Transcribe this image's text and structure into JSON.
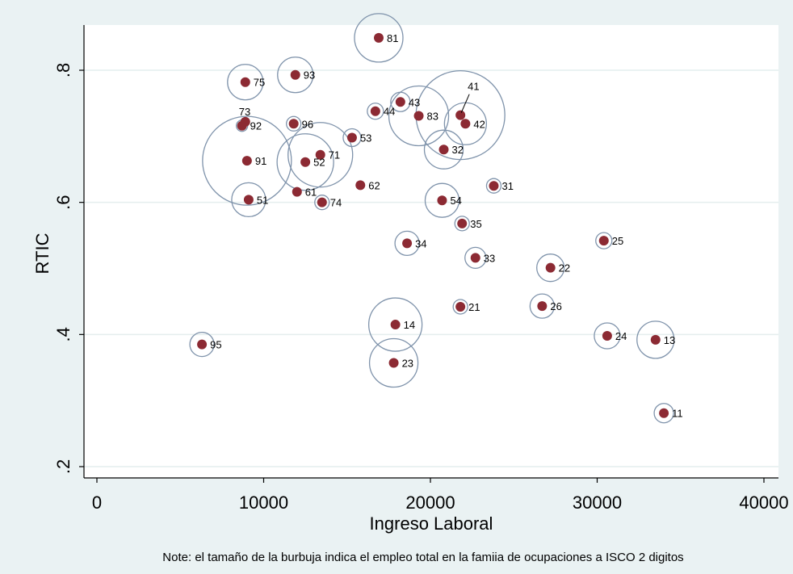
{
  "chart_data": {
    "type": "scatter",
    "title": "",
    "xlabel": "Ingreso Laboral",
    "ylabel": "RTIC",
    "xlim": [
      0,
      40000
    ],
    "ylim": [
      0.2,
      0.85
    ],
    "xticks": [
      "0",
      "10000",
      "20000",
      "30000",
      "40000"
    ],
    "yticks": [
      ".2",
      ".4",
      ".6",
      ".8"
    ],
    "grid": true,
    "note": "Note: el tamaño de la burbuja indica el empleo total en la famiia de ocupaciones a ISCO 2 digitos",
    "points": [
      {
        "label": "81",
        "x": 16900,
        "y": 0.849,
        "r": 30
      },
      {
        "label": "75",
        "x": 8900,
        "y": 0.782,
        "r": 22
      },
      {
        "label": "93",
        "x": 11900,
        "y": 0.793,
        "r": 22
      },
      {
        "label": "41",
        "x": 21800,
        "y": 0.732,
        "r": 55
      },
      {
        "label": "43",
        "x": 18200,
        "y": 0.752,
        "r": 12
      },
      {
        "label": "44",
        "x": 16700,
        "y": 0.738,
        "r": 10
      },
      {
        "label": "83",
        "x": 19300,
        "y": 0.731,
        "r": 37
      },
      {
        "label": "42",
        "x": 22100,
        "y": 0.719,
        "r": 26
      },
      {
        "label": "73",
        "x": 8900,
        "y": 0.722,
        "r": 5
      },
      {
        "label": "92",
        "x": 8700,
        "y": 0.716,
        "r": 7
      },
      {
        "label": "96",
        "x": 11800,
        "y": 0.719,
        "r": 9
      },
      {
        "label": "53",
        "x": 15300,
        "y": 0.698,
        "r": 11
      },
      {
        "label": "32",
        "x": 20800,
        "y": 0.68,
        "r": 24
      },
      {
        "label": "71",
        "x": 13400,
        "y": 0.672,
        "r": 40
      },
      {
        "label": "52",
        "x": 12500,
        "y": 0.661,
        "r": 35
      },
      {
        "label": "91",
        "x": 9000,
        "y": 0.663,
        "r": 55
      },
      {
        "label": "62",
        "x": 15800,
        "y": 0.626,
        "r": 5
      },
      {
        "label": "61",
        "x": 12000,
        "y": 0.616,
        "r": 5
      },
      {
        "label": "31",
        "x": 23800,
        "y": 0.625,
        "r": 9
      },
      {
        "label": "51",
        "x": 9100,
        "y": 0.604,
        "r": 21
      },
      {
        "label": "74",
        "x": 13500,
        "y": 0.6,
        "r": 9
      },
      {
        "label": "54",
        "x": 20700,
        "y": 0.603,
        "r": 21
      },
      {
        "label": "35",
        "x": 21900,
        "y": 0.568,
        "r": 9
      },
      {
        "label": "25",
        "x": 30400,
        "y": 0.542,
        "r": 10
      },
      {
        "label": "34",
        "x": 18600,
        "y": 0.538,
        "r": 15
      },
      {
        "label": "33",
        "x": 22700,
        "y": 0.516,
        "r": 13
      },
      {
        "label": "22",
        "x": 27200,
        "y": 0.501,
        "r": 17
      },
      {
        "label": "21",
        "x": 21800,
        "y": 0.442,
        "r": 9
      },
      {
        "label": "26",
        "x": 26700,
        "y": 0.443,
        "r": 15
      },
      {
        "label": "14",
        "x": 17900,
        "y": 0.415,
        "r": 33
      },
      {
        "label": "24",
        "x": 30600,
        "y": 0.398,
        "r": 16
      },
      {
        "label": "13",
        "x": 33500,
        "y": 0.392,
        "r": 23
      },
      {
        "label": "95",
        "x": 6300,
        "y": 0.385,
        "r": 15
      },
      {
        "label": "23",
        "x": 17800,
        "y": 0.357,
        "r": 30
      },
      {
        "label": "11",
        "x": 34000,
        "y": 0.281,
        "r": 12
      }
    ]
  }
}
